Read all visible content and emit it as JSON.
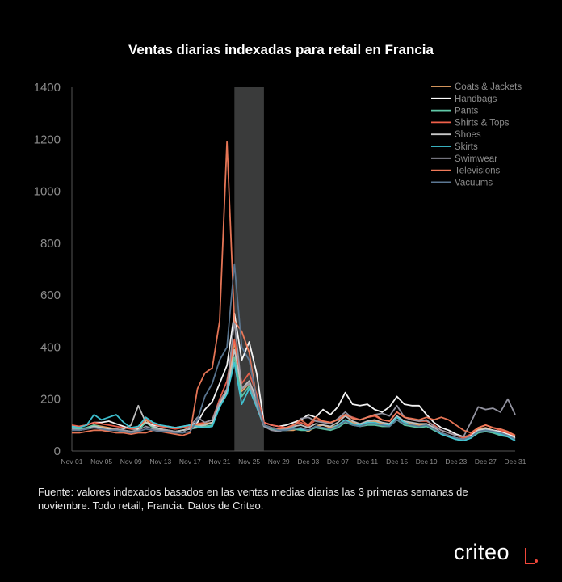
{
  "chart_data": {
    "type": "line",
    "title": "Ventas diarias indexadas para retail en Francia",
    "xlabel": "",
    "ylabel": "",
    "ylim": [
      0,
      1400
    ],
    "yticks": [
      0,
      200,
      400,
      600,
      800,
      1000,
      1200,
      1400
    ],
    "x": [
      "Nov 01",
      "Nov 02",
      "Nov 03",
      "Nov 04",
      "Nov 05",
      "Nov 06",
      "Nov 07",
      "Nov 08",
      "Nov 09",
      "Nov 10",
      "Nov 11",
      "Nov 12",
      "Nov 13",
      "Nov 14",
      "Nov 15",
      "Nov 16",
      "Nov 17",
      "Nov 18",
      "Nov 19",
      "Nov 20",
      "Nov 21",
      "Nov 22",
      "Nov 23",
      "Nov 24",
      "Nov 25",
      "Nov 26",
      "Nov 27",
      "Nov 28",
      "Nov 29",
      "Nov 30",
      "Dec 01",
      "Dec 02",
      "Dec 03",
      "Dec 04",
      "Dec 05",
      "Dec 06",
      "Dec 07",
      "Dec 08",
      "Dec 09",
      "Dec 10",
      "Dec 11",
      "Dec 12",
      "Dec 13",
      "Dec 14",
      "Dec 15",
      "Dec 16",
      "Dec 17",
      "Dec 18",
      "Dec 19",
      "Dec 20",
      "Dec 21",
      "Dec 22",
      "Dec 23",
      "Dec 24",
      "Dec 25",
      "Dec 26",
      "Dec 27",
      "Dec 28",
      "Dec 29",
      "Dec 30",
      "Dec 31"
    ],
    "xtick_labels": [
      "Nov 01",
      "Nov 05",
      "Nov 09",
      "Nov 13",
      "Nov 17",
      "Nov 21",
      "Nov 25",
      "Nov 29",
      "Dec 03",
      "Dec 07",
      "Dec 11",
      "Dec 15",
      "Dec 19",
      "Dec 23",
      "Dec 27",
      "Dec 31"
    ],
    "highlight_band": [
      "Nov 23",
      "Nov 27"
    ],
    "legend_position": "top-right",
    "grid": false,
    "series": [
      {
        "name": "Coats & Jackets",
        "color": "#f0a868",
        "values": [
          90,
          85,
          90,
          100,
          95,
          90,
          85,
          80,
          75,
          80,
          120,
          95,
          85,
          80,
          75,
          80,
          90,
          100,
          105,
          110,
          180,
          240,
          420,
          230,
          260,
          200,
          100,
          90,
          85,
          80,
          80,
          90,
          75,
          95,
          100,
          90,
          100,
          120,
          110,
          100,
          110,
          115,
          105,
          100,
          130,
          110,
          105,
          100,
          105,
          90,
          70,
          60,
          50,
          45,
          60,
          85,
          90,
          80,
          70,
          60,
          50
        ]
      },
      {
        "name": "Handbags",
        "color": "#ffffff",
        "values": [
          95,
          95,
          100,
          110,
          110,
          115,
          105,
          95,
          85,
          85,
          110,
          100,
          95,
          95,
          90,
          95,
          100,
          110,
          160,
          190,
          260,
          330,
          530,
          350,
          420,
          300,
          110,
          100,
          95,
          100,
          110,
          120,
          140,
          130,
          160,
          140,
          170,
          225,
          180,
          175,
          180,
          160,
          150,
          170,
          210,
          180,
          175,
          175,
          140,
          110,
          90,
          80,
          65,
          55,
          60,
          80,
          85,
          80,
          75,
          65,
          55
        ]
      },
      {
        "name": "Pants",
        "color": "#60c9a8",
        "values": [
          90,
          85,
          90,
          100,
          90,
          85,
          80,
          75,
          75,
          80,
          110,
          90,
          80,
          80,
          75,
          80,
          85,
          90,
          95,
          100,
          170,
          220,
          360,
          210,
          250,
          190,
          95,
          85,
          80,
          80,
          85,
          80,
          80,
          90,
          85,
          80,
          90,
          110,
          100,
          95,
          100,
          100,
          95,
          95,
          120,
          100,
          95,
          90,
          95,
          80,
          65,
          55,
          45,
          40,
          50,
          70,
          75,
          70,
          60,
          55,
          45
        ]
      },
      {
        "name": "Shirts & Tops",
        "color": "#f0604a",
        "values": [
          100,
          95,
          100,
          110,
          105,
          100,
          95,
          90,
          85,
          90,
          125,
          105,
          95,
          90,
          85,
          90,
          95,
          105,
          110,
          120,
          200,
          270,
          430,
          260,
          300,
          220,
          110,
          100,
          95,
          90,
          100,
          110,
          95,
          120,
          115,
          110,
          120,
          140,
          130,
          120,
          130,
          135,
          120,
          115,
          150,
          130,
          120,
          115,
          115,
          100,
          80,
          70,
          60,
          50,
          65,
          90,
          100,
          90,
          80,
          70,
          60
        ]
      },
      {
        "name": "Shoes",
        "color": "#c8c8c8",
        "values": [
          85,
          80,
          85,
          95,
          90,
          85,
          80,
          85,
          100,
          175,
          110,
          95,
          85,
          80,
          75,
          80,
          85,
          95,
          100,
          110,
          180,
          230,
          390,
          240,
          270,
          200,
          100,
          90,
          85,
          85,
          95,
          100,
          90,
          105,
          100,
          95,
          110,
          135,
          115,
          105,
          115,
          120,
          110,
          105,
          135,
          115,
          110,
          105,
          105,
          90,
          70,
          60,
          50,
          45,
          55,
          80,
          85,
          80,
          70,
          60,
          50
        ]
      },
      {
        "name": "Skirts",
        "color": "#40c8d8",
        "values": [
          95,
          90,
          100,
          140,
          120,
          130,
          140,
          110,
          90,
          95,
          130,
          110,
          100,
          95,
          90,
          95,
          100,
          95,
          90,
          95,
          170,
          220,
          340,
          180,
          240,
          170,
          95,
          90,
          85,
          85,
          90,
          85,
          80,
          95,
          90,
          85,
          100,
          120,
          105,
          100,
          110,
          110,
          100,
          100,
          130,
          110,
          100,
          95,
          100,
          85,
          65,
          55,
          45,
          40,
          50,
          75,
          80,
          75,
          65,
          55,
          40
        ]
      },
      {
        "name": "Swimwear",
        "color": "#9a9aa8",
        "values": [
          85,
          80,
          85,
          90,
          85,
          80,
          85,
          80,
          75,
          80,
          95,
          85,
          80,
          80,
          75,
          70,
          95,
          130,
          110,
          120,
          190,
          240,
          500,
          240,
          260,
          180,
          95,
          80,
          75,
          85,
          95,
          125,
          130,
          115,
          110,
          105,
          125,
          150,
          125,
          120,
          130,
          140,
          145,
          135,
          175,
          130,
          120,
          115,
          120,
          95,
          80,
          70,
          60,
          55,
          110,
          170,
          160,
          165,
          150,
          200,
          140
        ]
      },
      {
        "name": "Televisions",
        "color": "#f07a5a",
        "values": [
          70,
          70,
          75,
          80,
          80,
          75,
          70,
          70,
          65,
          70,
          70,
          80,
          75,
          70,
          65,
          60,
          70,
          240,
          300,
          320,
          500,
          1190,
          500,
          460,
          380,
          200,
          100,
          90,
          85,
          90,
          100,
          120,
          100,
          130,
          115,
          110,
          120,
          140,
          125,
          120,
          130,
          140,
          120,
          115,
          150,
          130,
          125,
          120,
          130,
          120,
          130,
          120,
          100,
          80,
          70,
          90,
          100,
          90,
          85,
          75,
          60
        ]
      },
      {
        "name": "Vacuums",
        "color": "#5c7894",
        "values": [
          80,
          80,
          85,
          90,
          85,
          80,
          80,
          75,
          70,
          75,
          85,
          80,
          75,
          75,
          70,
          70,
          75,
          120,
          210,
          260,
          350,
          400,
          720,
          400,
          350,
          200,
          100,
          90,
          80,
          80,
          85,
          90,
          80,
          95,
          90,
          85,
          95,
          115,
          100,
          95,
          105,
          105,
          100,
          95,
          120,
          105,
          100,
          95,
          100,
          85,
          70,
          60,
          50,
          45,
          55,
          75,
          80,
          75,
          70,
          60,
          45
        ]
      }
    ]
  },
  "footnote": "Fuente: valores indexados basados en las ventas medias diarias las 3 primeras semanas de noviembre. Todo retail, Francia. Datos de Criteo.",
  "logo_text": "criteo"
}
